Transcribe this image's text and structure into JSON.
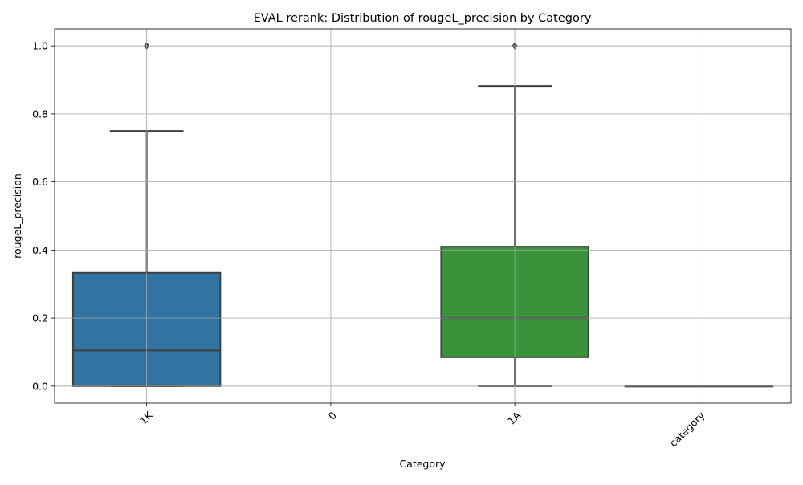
{
  "chart_data": {
    "type": "box",
    "title": "EVAL rerank: Distribution of rougeL_precision by Category",
    "xlabel": "Category",
    "ylabel": "rougeL_precision",
    "categories": [
      "1K",
      "0",
      "1A",
      "category"
    ],
    "ylim": [
      -0.05,
      1.05
    ],
    "yticks": [
      0.0,
      0.2,
      0.4,
      0.6,
      0.8,
      1.0
    ],
    "ytick_labels": [
      "0.0",
      "0.2",
      "0.4",
      "0.6",
      "0.8",
      "1.0"
    ],
    "grid": true,
    "boxes": [
      {
        "category": "1K",
        "color": "#3274a1",
        "whisker_low": 0.0,
        "q1": 0.0,
        "median": 0.105,
        "q3": 0.333,
        "whisker_high": 0.75,
        "outliers": [
          1.0
        ]
      },
      {
        "category": "0",
        "color": "#e1812c",
        "whisker_low": null,
        "q1": null,
        "median": null,
        "q3": null,
        "whisker_high": null,
        "outliers": []
      },
      {
        "category": "1A",
        "color": "#3a923a",
        "whisker_low": 0.0,
        "q1": 0.085,
        "median": 0.2,
        "q3": 0.41,
        "whisker_high": 0.882,
        "outliers": [
          1.0
        ]
      },
      {
        "category": "category",
        "color": "#c03d3e",
        "whisker_low": 0.0,
        "q1": 0.0,
        "median": 0.0,
        "q3": 0.0,
        "whisker_high": 0.0,
        "outliers": []
      }
    ]
  }
}
